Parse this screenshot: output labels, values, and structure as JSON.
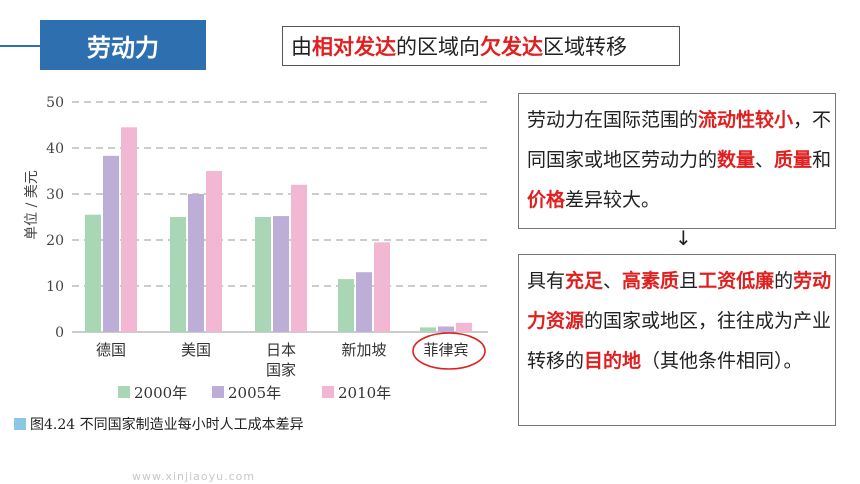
{
  "header": {
    "title": "劳动力",
    "subtitle_parts": [
      {
        "text": "由",
        "highlight": false
      },
      {
        "text": "相对发达",
        "highlight": true
      },
      {
        "text": "的区域向",
        "highlight": false
      },
      {
        "text": "欠发达",
        "highlight": true
      },
      {
        "text": "区域转移",
        "highlight": false
      }
    ]
  },
  "box1_parts": [
    {
      "text": "劳动力在国际范围的",
      "highlight": false
    },
    {
      "text": "流动性较小",
      "highlight": true
    },
    {
      "text": "，不同国家或地区劳动力的",
      "highlight": false
    },
    {
      "text": "数量",
      "highlight": true
    },
    {
      "text": "、",
      "highlight": false
    },
    {
      "text": "质量",
      "highlight": true
    },
    {
      "text": "和",
      "highlight": false
    },
    {
      "text": "价格",
      "highlight": true
    },
    {
      "text": "差异较大。",
      "highlight": false
    }
  ],
  "arrow": "↓",
  "box2_parts": [
    {
      "text": "具有",
      "highlight": false
    },
    {
      "text": "充足",
      "highlight": true
    },
    {
      "text": "、",
      "highlight": false
    },
    {
      "text": "高素质",
      "highlight": true
    },
    {
      "text": "且",
      "highlight": false
    },
    {
      "text": "工资低廉",
      "highlight": true
    },
    {
      "text": "的",
      "highlight": false
    },
    {
      "text": "劳动力资源",
      "highlight": true
    },
    {
      "text": "的国家或地区，往往成为产业转移的",
      "highlight": false
    },
    {
      "text": "目的地",
      "highlight": true
    },
    {
      "text": "（其他条件相同）。",
      "highlight": false
    }
  ],
  "caption": "图4.24   不同国家制造业每小时人工成本差异",
  "watermark": "www.xinjiaoyu.com",
  "colors": {
    "accent": "#2e6fb0",
    "highlight": "#e02020",
    "s2000": "#a9d6b4",
    "s2005": "#bcaed6",
    "s2010": "#f1b7d3",
    "circle": "#e02020"
  },
  "chart_data": {
    "type": "bar",
    "ylabel": "单位 / 美元",
    "ylim": [
      0,
      50
    ],
    "yticks": [
      0,
      10,
      20,
      30,
      40,
      50
    ],
    "categories": [
      "德国",
      "美国",
      "日本\n国家",
      "新加坡",
      "菲律宾"
    ],
    "series": [
      {
        "name": "2000年",
        "values": [
          25.5,
          25,
          25,
          11.5,
          1
        ]
      },
      {
        "name": "2005年",
        "values": [
          38.3,
          30,
          25.2,
          13,
          1.2
        ]
      },
      {
        "name": "2010年",
        "values": [
          44.5,
          35,
          32,
          19.5,
          2
        ]
      }
    ],
    "grid": "dashed horizontal",
    "legend": "bottom",
    "annotation": "菲律宾 circled in red"
  }
}
